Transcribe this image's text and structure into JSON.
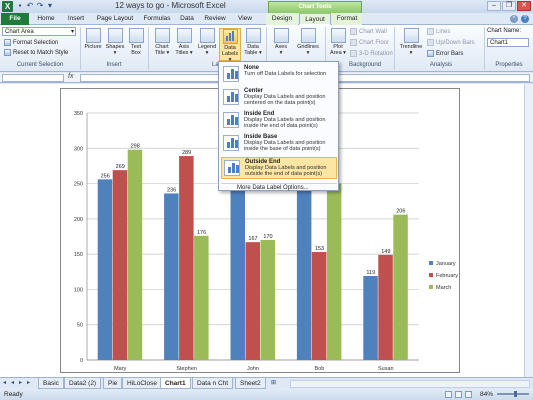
{
  "window": {
    "title": "12 ways to go - Microsoft Excel",
    "context_tab": "Chart Tools",
    "icons": [
      "excel-logo-icon",
      "save-icon",
      "undo-icon",
      "redo-icon",
      "minimize-icon",
      "restore-icon",
      "close-icon"
    ]
  },
  "tabs": [
    {
      "label": "File"
    },
    {
      "label": "Home"
    },
    {
      "label": "Insert"
    },
    {
      "label": "Page Layout"
    },
    {
      "label": "Formulas"
    },
    {
      "label": "Data"
    },
    {
      "label": "Review"
    },
    {
      "label": "View"
    },
    {
      "label": "Design"
    },
    {
      "label": "Layout"
    },
    {
      "label": "Format"
    }
  ],
  "ribbon": {
    "current_selection": {
      "dropdown_value": "Chart Area",
      "format_selection": "Format Selection",
      "reset_style": "Reset to Match Style",
      "group_label": "Current Selection"
    },
    "insert": {
      "picture": "Picture",
      "shapes": "Shapes",
      "text_box_1": "Text",
      "text_box_2": "Box",
      "group_label": "Insert"
    },
    "labels": {
      "chart_title_1": "Chart",
      "chart_title_2": "Title",
      "axis_titles_1": "Axis",
      "axis_titles_2": "Titles",
      "legend": "Legend",
      "data_labels_1": "Data",
      "data_labels_2": "Labels",
      "data_table_1": "Data",
      "data_table_2": "Table",
      "group_label": "Labels"
    },
    "axes": {
      "axes": "Axes",
      "gridlines": "Gridlines"
    },
    "background": {
      "plot_area_1": "Plot",
      "plot_area_2": "Area",
      "chart_wall": "Chart Wall",
      "chart_floor": "Chart Floor",
      "rotation": "3-D Rotation",
      "group_label": "Background"
    },
    "analysis": {
      "trendline": "Trendline",
      "lines": "Lines",
      "updown": "Up/Down Bars",
      "error_bars": "Error Bars",
      "group_label": "Analysis"
    },
    "properties": {
      "chart_name_label": "Chart Name:",
      "chart_name_value": "Chart1",
      "group_label": "Properties"
    }
  },
  "formula_bar": {
    "fx": "fx"
  },
  "dropdown": {
    "items": [
      {
        "title": "None",
        "desc": "Turn off Data Labels for selection"
      },
      {
        "title": "Center",
        "desc": "Display Data Labels and position centered on the data point(s)"
      },
      {
        "title": "Inside End",
        "desc": "Display Data Labels and position inside the end of data point(s)"
      },
      {
        "title": "Inside Base",
        "desc": "Display Data Labels and position inside the base of data point(s)"
      },
      {
        "title": "Outside End",
        "desc": "Display Data Labels and position outside the end of data point(s)"
      }
    ],
    "more": "More Data Label Options..."
  },
  "chart_data": {
    "type": "bar",
    "categories": [
      "Mary",
      "Stephen",
      "John",
      "Bob",
      "Susan"
    ],
    "series": [
      {
        "name": "January",
        "color": "#4f81bd",
        "values": [
          256,
          236,
          300,
          300,
          119
        ]
      },
      {
        "name": "February",
        "color": "#c0504d",
        "values": [
          269,
          289,
          167,
          153,
          149
        ]
      },
      {
        "name": "March",
        "color": "#9bbb59",
        "values": [
          298,
          176,
          170,
          250,
          206
        ]
      }
    ],
    "yticks": [
      "0",
      "50",
      "100",
      "150",
      "200",
      "250",
      "300",
      "350"
    ],
    "ylim": [
      0,
      350
    ],
    "grid": true,
    "legend_position": "right"
  },
  "sheet_tabs": [
    "Basic",
    "Data2 (2)",
    "Pie",
    "HiLoClose",
    "Chart1",
    "Data n Cht",
    "Sheet2"
  ],
  "active_sheet": "Chart1",
  "status": {
    "ready": "Ready",
    "zoom": "84%"
  }
}
